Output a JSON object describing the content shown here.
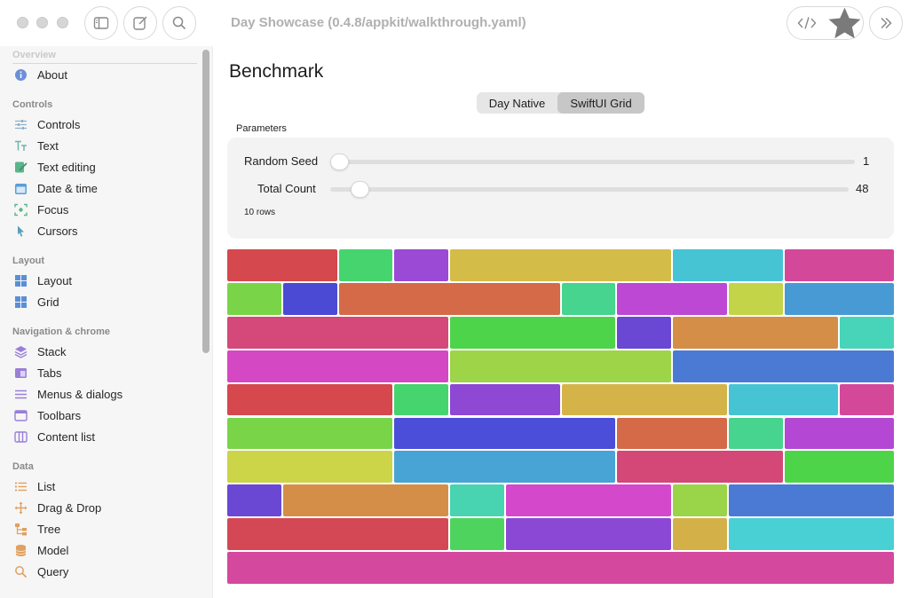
{
  "window": {
    "title": "Day Showcase (0.4.8/appkit/walkthrough.yaml)",
    "toolbar_left_icons": [
      "sidebar-toggle-icon",
      "compose-icon",
      "search-icon"
    ],
    "toolbar_right_icons": [
      "code-icon",
      "star-icon",
      "forward-icon"
    ]
  },
  "sidebar": {
    "sections": [
      {
        "title": "Overview",
        "items": [
          {
            "label": "About",
            "icon": "info-icon",
            "color": "#6e8fd8"
          }
        ]
      },
      {
        "title": "Controls",
        "items": [
          {
            "label": "Controls",
            "icon": "sliders-icon",
            "color": "#8fb0c8"
          },
          {
            "label": "Text",
            "icon": "text-icon",
            "color": "#6fb5a8"
          },
          {
            "label": "Text editing",
            "icon": "edit-icon",
            "color": "#5ab58a"
          },
          {
            "label": "Date & time",
            "icon": "calendar-icon",
            "color": "#5a9fd8"
          },
          {
            "label": "Focus",
            "icon": "focus-icon",
            "color": "#5ab58a"
          },
          {
            "label": "Cursors",
            "icon": "cursor-icon",
            "color": "#5a9fb8"
          }
        ]
      },
      {
        "title": "Layout",
        "items": [
          {
            "label": "Layout",
            "icon": "layout-icon",
            "color": "#5a8fd8"
          },
          {
            "label": "Grid",
            "icon": "grid-icon",
            "color": "#5a8fd8"
          }
        ]
      },
      {
        "title": "Navigation & chrome",
        "items": [
          {
            "label": "Stack",
            "icon": "stack-icon",
            "color": "#9a7fd8"
          },
          {
            "label": "Tabs",
            "icon": "tabs-icon",
            "color": "#9a7fd8"
          },
          {
            "label": "Menus & dialogs",
            "icon": "menu-icon",
            "color": "#9a7fd8"
          },
          {
            "label": "Toolbars",
            "icon": "toolbar-icon",
            "color": "#9a7fd8"
          },
          {
            "label": "Content list",
            "icon": "columns-icon",
            "color": "#9a7fd8"
          }
        ]
      },
      {
        "title": "Data",
        "items": [
          {
            "label": "List",
            "icon": "list-icon",
            "color": "#e0a060"
          },
          {
            "label": "Drag & Drop",
            "icon": "move-icon",
            "color": "#e0a060"
          },
          {
            "label": "Tree",
            "icon": "tree-icon",
            "color": "#e0a060"
          },
          {
            "label": "Model",
            "icon": "database-icon",
            "color": "#e0a060"
          },
          {
            "label": "Query",
            "icon": "query-icon",
            "color": "#e0a060"
          }
        ]
      }
    ]
  },
  "main": {
    "title": "Benchmark",
    "segmented": {
      "options": [
        "Day Native",
        "SwiftUI Grid"
      ],
      "selected": 1
    },
    "params_label": "Parameters",
    "sliders": [
      {
        "label": "Random Seed",
        "value": "1",
        "fraction": 0.0
      },
      {
        "label": "Total Count",
        "value": "48",
        "fraction": 0.04
      }
    ],
    "rows_note": "10 rows"
  },
  "grid": {
    "rows": 10,
    "columns": 12,
    "cells": [
      [
        {
          "span": 2,
          "color": "#d4484e"
        },
        {
          "span": 1,
          "color": "#46d46e"
        },
        {
          "span": 1,
          "color": "#9a4ad4"
        },
        {
          "span": 4,
          "color": "#d4bc48"
        },
        {
          "span": 2,
          "color": "#46c4d4"
        },
        {
          "span": 2,
          "color": "#d4489a"
        }
      ],
      [
        {
          "span": 1,
          "color": "#7ad448"
        },
        {
          "span": 1,
          "color": "#4a4ad4"
        },
        {
          "span": 4,
          "color": "#d46a48"
        },
        {
          "span": 1,
          "color": "#46d48e"
        },
        {
          "span": 2,
          "color": "#bc48d4"
        },
        {
          "span": 1,
          "color": "#c4d448"
        },
        {
          "span": 2,
          "color": "#489ad4"
        }
      ],
      [
        {
          "span": 4,
          "color": "#d4487a"
        },
        {
          "span": 3,
          "color": "#4ed44a"
        },
        {
          "span": 1,
          "color": "#6a48d4"
        },
        {
          "span": 3,
          "color": "#d48e48"
        },
        {
          "span": 1,
          "color": "#48d4b8"
        }
      ],
      [
        {
          "span": 4,
          "color": "#d448c4"
        },
        {
          "span": 4,
          "color": "#9ed448"
        },
        {
          "span": 4,
          "color": "#4a7ad4"
        }
      ],
      [
        {
          "span": 3,
          "color": "#d4484e"
        },
        {
          "span": 1,
          "color": "#46d46e"
        },
        {
          "span": 2,
          "color": "#8e48d4"
        },
        {
          "span": 3,
          "color": "#d4b448"
        },
        {
          "span": 2,
          "color": "#46c4d4"
        },
        {
          "span": 1,
          "color": "#d4489a"
        }
      ],
      [
        {
          "span": 3,
          "color": "#7ad448"
        },
        {
          "span": 4,
          "color": "#4a4ed8"
        },
        {
          "span": 2,
          "color": "#d46a48"
        },
        {
          "span": 1,
          "color": "#46d48e"
        },
        {
          "span": 2,
          "color": "#b448d4"
        }
      ],
      [
        {
          "span": 3,
          "color": "#ccd448"
        },
        {
          "span": 4,
          "color": "#48a4d4"
        },
        {
          "span": 3,
          "color": "#d44878"
        },
        {
          "span": 2,
          "color": "#4ed448"
        }
      ],
      [
        {
          "span": 1,
          "color": "#6a48d4"
        },
        {
          "span": 3,
          "color": "#d48e48"
        },
        {
          "span": 1,
          "color": "#48d4b0"
        },
        {
          "span": 3,
          "color": "#d448cc"
        },
        {
          "span": 1,
          "color": "#9ad448"
        },
        {
          "span": 3,
          "color": "#4a7ad4"
        }
      ],
      [
        {
          "span": 4,
          "color": "#d44856"
        },
        {
          "span": 1,
          "color": "#4ed45e"
        },
        {
          "span": 3,
          "color": "#8a48d4"
        },
        {
          "span": 1,
          "color": "#d4b048"
        },
        {
          "span": 3,
          "color": "#48d0d4"
        }
      ],
      [
        {
          "span": 12,
          "color": "#d4489e"
        }
      ]
    ]
  }
}
